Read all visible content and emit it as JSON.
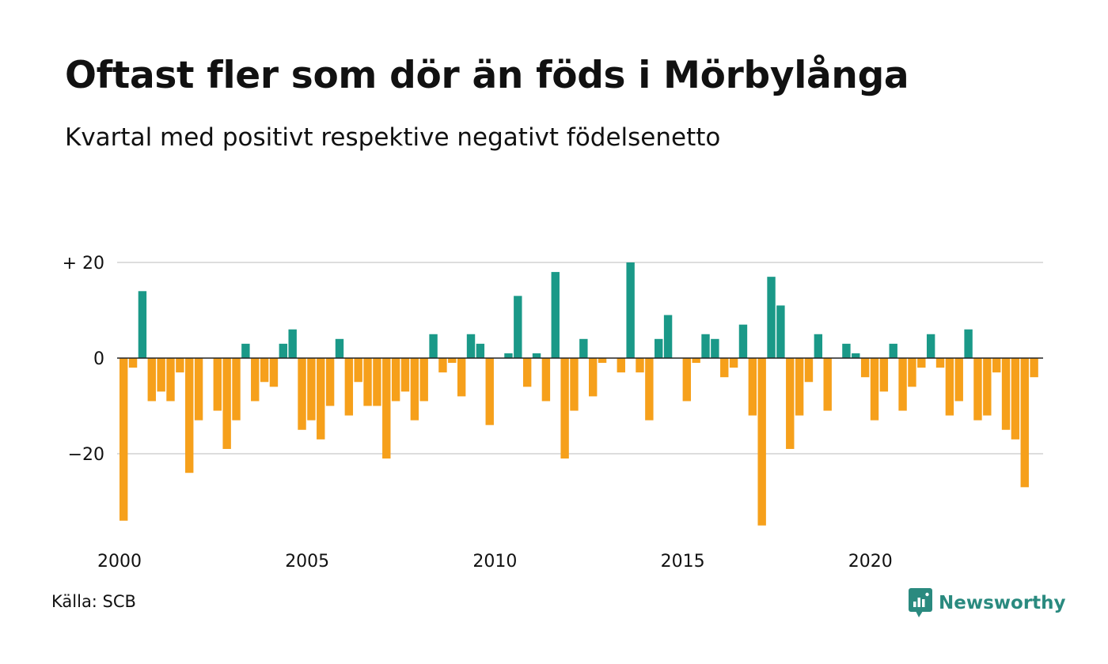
{
  "title": "Oftast fler som dör än föds i Mörbylånga",
  "subtitle": "Kvartal med positivt respektive negativt födelsenetto",
  "source": "Källa: SCB",
  "brand": {
    "name": "Newsworthy",
    "icon": "newsworthy-logo-icon"
  },
  "colors": {
    "positive": "#1a9988",
    "negative": "#f6a01b",
    "gridline": "#dddddd",
    "zeroline": "#222222",
    "brand": "#2a8a7f"
  },
  "chart_data": {
    "type": "bar",
    "title": "Oftast fler som dör än föds i Mörbylånga",
    "subtitle": "Kvartal med positivt respektive negativt födelsenetto",
    "xlabel": "",
    "ylabel": "",
    "ylim": [
      -35,
      20
    ],
    "yticks": [
      {
        "value": 20,
        "label": "+ 20"
      },
      {
        "value": 0,
        "label": "0"
      },
      {
        "value": -20,
        "label": "−20"
      }
    ],
    "grid": true,
    "legend": "none",
    "start_year": 2000,
    "xticks": [
      "2000",
      "2005",
      "2010",
      "2015",
      "2020"
    ],
    "values": [
      -34,
      -2,
      14,
      -9,
      -7,
      -9,
      -3,
      -24,
      -13,
      0,
      -11,
      -19,
      -13,
      3,
      -9,
      -5,
      -6,
      3,
      6,
      -15,
      -13,
      -17,
      -10,
      4,
      -12,
      -5,
      -10,
      -10,
      -21,
      -9,
      -7,
      -13,
      -9,
      5,
      -3,
      -1,
      -8,
      5,
      3,
      -14,
      0,
      1,
      13,
      -6,
      1,
      -9,
      18,
      -21,
      -11,
      4,
      -8,
      -1,
      0,
      -3,
      20,
      -3,
      -13,
      4,
      9,
      0,
      -9,
      -1,
      5,
      4,
      -4,
      -2,
      7,
      -12,
      -35,
      17,
      11,
      -19,
      -12,
      -5,
      5,
      -11,
      0,
      3,
      1,
      -4,
      -13,
      -7,
      3,
      -11,
      -6,
      -2,
      5,
      -2,
      -12,
      -9,
      6,
      -13,
      -12,
      -3,
      -15,
      -17,
      -27,
      -4
    ]
  }
}
